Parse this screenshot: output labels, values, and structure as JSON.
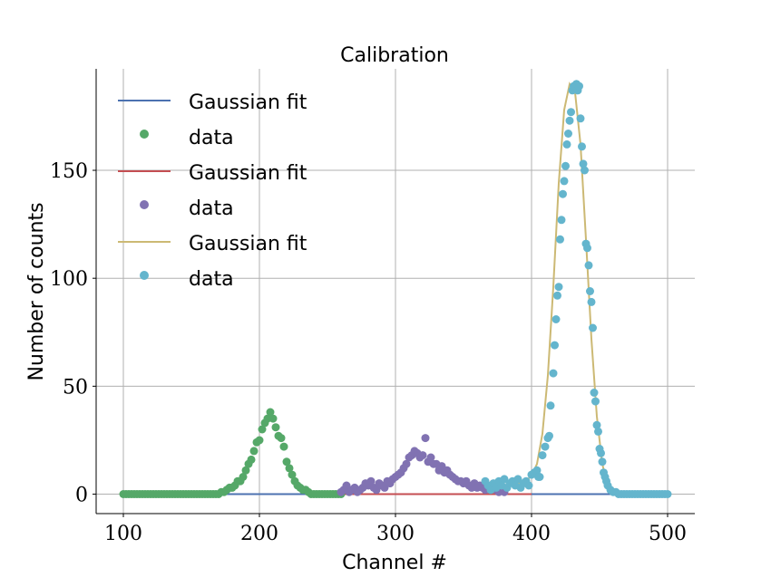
{
  "chart_data": {
    "type": "scatter",
    "title": "Calibration",
    "xlabel": "Channel #",
    "ylabel": "Number of counts",
    "xlim": [
      80,
      520
    ],
    "ylim": [
      -9,
      197
    ],
    "xticks": [
      100,
      200,
      300,
      400,
      500
    ],
    "xtick_labels": [
      "100",
      "200",
      "300",
      "400",
      "500"
    ],
    "yticks": [
      0,
      50,
      100,
      150
    ],
    "ytick_labels": [
      "0",
      "50",
      "100",
      "150"
    ],
    "grid": true,
    "legend_position": "top-left",
    "legend": [
      {
        "label": "Gaussian fit",
        "kind": "line",
        "color": "#4c72b0"
      },
      {
        "label": "data",
        "kind": "marker",
        "color": "#55a868"
      },
      {
        "label": "Gaussian fit",
        "kind": "line",
        "color": "#c44e52"
      },
      {
        "label": "data",
        "kind": "marker",
        "color": "#8172b2"
      },
      {
        "label": "Gaussian fit",
        "kind": "line",
        "color": "#ccb974"
      },
      {
        "label": "data",
        "kind": "marker",
        "color": "#64b5cd"
      }
    ],
    "series": [
      {
        "kind": "fit",
        "color": "#4c72b0",
        "x": [
          100,
          500
        ],
        "y": [
          0,
          0
        ]
      },
      {
        "kind": "data",
        "color": "#55a868",
        "x": [
          100,
          102,
          104,
          106,
          108,
          110,
          112,
          114,
          116,
          118,
          120,
          122,
          124,
          126,
          128,
          130,
          132,
          134,
          136,
          138,
          140,
          142,
          144,
          146,
          148,
          150,
          152,
          154,
          156,
          158,
          160,
          162,
          164,
          166,
          168,
          170,
          172,
          174,
          176,
          178,
          180,
          182,
          184,
          186,
          188,
          190,
          192,
          194,
          196,
          198,
          200,
          202,
          204,
          206,
          208,
          210,
          212,
          214,
          216,
          218,
          220,
          222,
          224,
          226,
          228,
          230,
          232,
          234,
          236,
          238,
          240,
          242,
          244,
          246,
          248,
          250,
          252,
          254,
          256,
          258,
          260
        ],
        "y": [
          0,
          0,
          0,
          0,
          0,
          0,
          0,
          0,
          0,
          0,
          0,
          0,
          0,
          0,
          0,
          0,
          0,
          0,
          0,
          0,
          0,
          0,
          0,
          0,
          0,
          0,
          0,
          0,
          0,
          0,
          0,
          0,
          0,
          0,
          0,
          0,
          1,
          1,
          2,
          3,
          3,
          4,
          6,
          6,
          8,
          11,
          14,
          16,
          20,
          24,
          25,
          30,
          33,
          35,
          38,
          35,
          31,
          27,
          26,
          22,
          15,
          12,
          9,
          6,
          4,
          3,
          2,
          2,
          1,
          0,
          0,
          0,
          0,
          0,
          0,
          0,
          0,
          0,
          0,
          0,
          0
        ]
      },
      {
        "kind": "fit",
        "color": "#c44e52",
        "x": [
          255,
          400
        ],
        "y": [
          0,
          0
        ]
      },
      {
        "kind": "data",
        "color": "#8172b2",
        "x": [
          260,
          262,
          264,
          266,
          268,
          270,
          272,
          274,
          276,
          278,
          280,
          282,
          284,
          286,
          288,
          290,
          292,
          294,
          296,
          298,
          300,
          302,
          304,
          306,
          308,
          310,
          312,
          314,
          316,
          318,
          320,
          322,
          324,
          326,
          328,
          330,
          332,
          334,
          336,
          338,
          340,
          342,
          344,
          346,
          348,
          350,
          352,
          354,
          356,
          358,
          360,
          362,
          364,
          366,
          368,
          370,
          372,
          374,
          376,
          378,
          380
        ],
        "y": [
          1,
          2,
          4,
          1,
          2,
          3,
          1,
          2,
          3,
          5,
          4,
          6,
          3,
          2,
          5,
          4,
          3,
          6,
          5,
          7,
          8,
          9,
          10,
          12,
          14,
          17,
          18,
          20,
          19,
          17,
          18,
          26,
          15,
          17,
          14,
          14,
          11,
          13,
          10,
          11,
          9,
          8,
          7,
          6,
          6,
          5,
          6,
          4,
          3,
          5,
          3,
          4,
          3,
          2,
          3,
          2,
          3,
          2,
          1,
          2,
          1
        ]
      },
      {
        "kind": "fit",
        "color": "#ccb974",
        "x": [
          368,
          372,
          376,
          380,
          384,
          388,
          392,
          396,
          400,
          404,
          408,
          412,
          416,
          420,
          424,
          428,
          432,
          436,
          440,
          444,
          448,
          452,
          456,
          460,
          464,
          468,
          472,
          476,
          480,
          484,
          488,
          492,
          496,
          500
        ],
        "y": [
          3.5,
          3.8,
          4.0,
          4.2,
          4.4,
          4.7,
          5.2,
          6.2,
          8.5,
          14,
          28,
          55,
          96,
          144,
          178,
          190,
          186,
          162,
          118,
          72,
          36,
          14,
          4,
          1.5,
          0.6,
          0.2,
          0,
          0,
          0,
          0,
          0,
          0,
          0,
          0
        ]
      },
      {
        "kind": "data",
        "color": "#64b5cd",
        "x": [
          366,
          368,
          370,
          372,
          374,
          376,
          378,
          380,
          382,
          384,
          386,
          388,
          390,
          392,
          394,
          396,
          398,
          400,
          402,
          404,
          405,
          406,
          408,
          410,
          412,
          413,
          414,
          416,
          417,
          418,
          419,
          420,
          421,
          422,
          423,
          424,
          425,
          426,
          427,
          428,
          429,
          430,
          431,
          432,
          433,
          434,
          435,
          436,
          437,
          438,
          439,
          440,
          441,
          442,
          443,
          444,
          445,
          446,
          447,
          448,
          449,
          450,
          451,
          452,
          453,
          454,
          455,
          456,
          458,
          460,
          462,
          464,
          466,
          468,
          470,
          472,
          474,
          476,
          478,
          480,
          482,
          484,
          486,
          488,
          490,
          492,
          494,
          496,
          498,
          500
        ],
        "y": [
          6,
          4,
          2,
          5,
          3,
          6,
          4,
          7,
          3,
          5,
          6,
          4,
          7,
          3,
          5,
          6,
          4,
          9,
          10,
          11,
          8,
          8,
          18,
          22,
          26,
          27,
          41,
          56,
          69,
          81,
          92,
          96,
          118,
          127,
          139,
          145,
          152,
          162,
          167,
          173,
          177,
          187,
          189,
          189,
          190,
          187,
          189,
          174,
          161,
          153,
          150,
          116,
          114,
          106,
          94,
          89,
          77,
          47,
          43,
          32,
          29,
          21,
          19,
          15,
          10,
          8,
          6,
          4,
          2,
          1,
          1,
          0,
          0,
          0,
          0,
          0,
          0,
          0,
          0,
          0,
          0,
          0,
          0,
          0,
          0,
          0,
          0,
          0,
          0,
          0
        ]
      }
    ]
  }
}
